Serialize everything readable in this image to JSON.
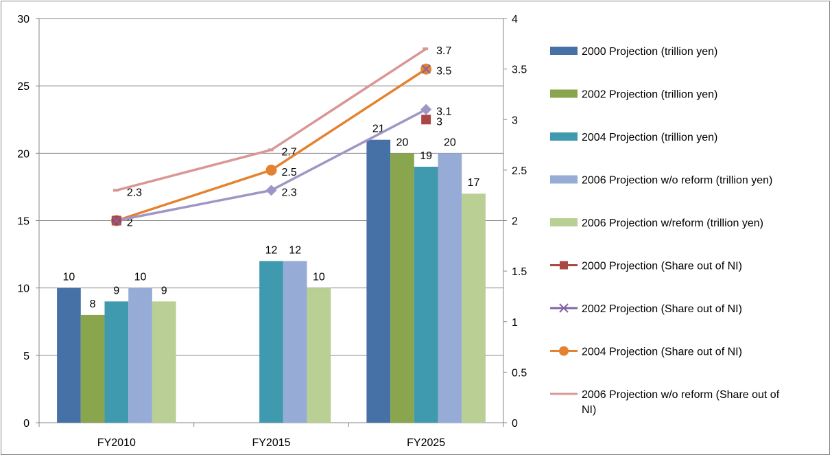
{
  "chart_data": {
    "type": "bar",
    "categories": [
      "FY2010",
      "FY2015",
      "FY2025"
    ],
    "y_left": {
      "ylim": [
        0,
        30
      ],
      "ticks": [
        "0",
        "5",
        "10",
        "15",
        "20",
        "25",
        "30"
      ],
      "tick_values": [
        0,
        5,
        10,
        15,
        20,
        25,
        30
      ]
    },
    "y_right": {
      "ylim": [
        0,
        4
      ],
      "ticks": [
        "0",
        "0.5",
        "1",
        "1.5",
        "2",
        "2.5",
        "3",
        "3.5",
        "4"
      ],
      "tick_values": [
        0,
        0.5,
        1,
        1.5,
        2,
        2.5,
        3,
        3.5,
        4
      ]
    },
    "grid": "horizontal",
    "legend_position": "right",
    "bar_series": [
      {
        "name": "2000 Projection (trillion yen)",
        "color": "#4571A6",
        "values": [
          10,
          null,
          21
        ],
        "labels": [
          "10",
          "",
          "21"
        ]
      },
      {
        "name": "2002 Projection (trillion yen)",
        "color": "#89A54E",
        "values": [
          8,
          null,
          20
        ],
        "labels": [
          "8",
          "",
          "20"
        ]
      },
      {
        "name": "2004 Projection (trillion yen)",
        "color": "#3F9AAF",
        "values": [
          9,
          12,
          19
        ],
        "labels": [
          "9",
          "12",
          "19"
        ]
      },
      {
        "name": "2006 Projection w/o reform (trillion yen)",
        "color": "#96ACD6",
        "values": [
          10,
          12,
          20
        ],
        "labels": [
          "10",
          "12",
          "20"
        ]
      },
      {
        "name": "2006 Projection w/reform (trillion yen)",
        "color": "#B9CF94",
        "values": [
          9,
          10,
          17
        ],
        "labels": [
          "9",
          "10",
          "17"
        ]
      }
    ],
    "line_series": [
      {
        "name": "2000 Projection (Share out of NI)",
        "color": "#AA4643",
        "marker": "square",
        "values": [
          2,
          null,
          3
        ],
        "labels": [
          "",
          "",
          "3"
        ]
      },
      {
        "name": "2002 Projection (Share out of NI)",
        "color": "#8064A2",
        "marker": "x",
        "values": [
          2,
          null,
          3.5
        ],
        "labels": [
          "",
          "",
          ""
        ]
      },
      {
        "name": "2004 Projection (Share out of NI)",
        "color": "#E5822F",
        "marker": "circle",
        "values": [
          2,
          2.5,
          3.5
        ],
        "labels": [
          "2",
          "2.5",
          "3.5"
        ]
      },
      {
        "name": "2006 Projection w/o reform (Share out of NI)",
        "color": "#D99694",
        "marker": "none",
        "values": [
          2.3,
          2.7,
          3.7
        ],
        "labels": [
          "2.3",
          "2.7",
          "3.7"
        ]
      },
      {
        "name": "",
        "color": "#A095C5",
        "marker": "diamond",
        "values": [
          2,
          2.3,
          3.1
        ],
        "labels": [
          "",
          "2.3",
          "3.1"
        ]
      }
    ]
  }
}
